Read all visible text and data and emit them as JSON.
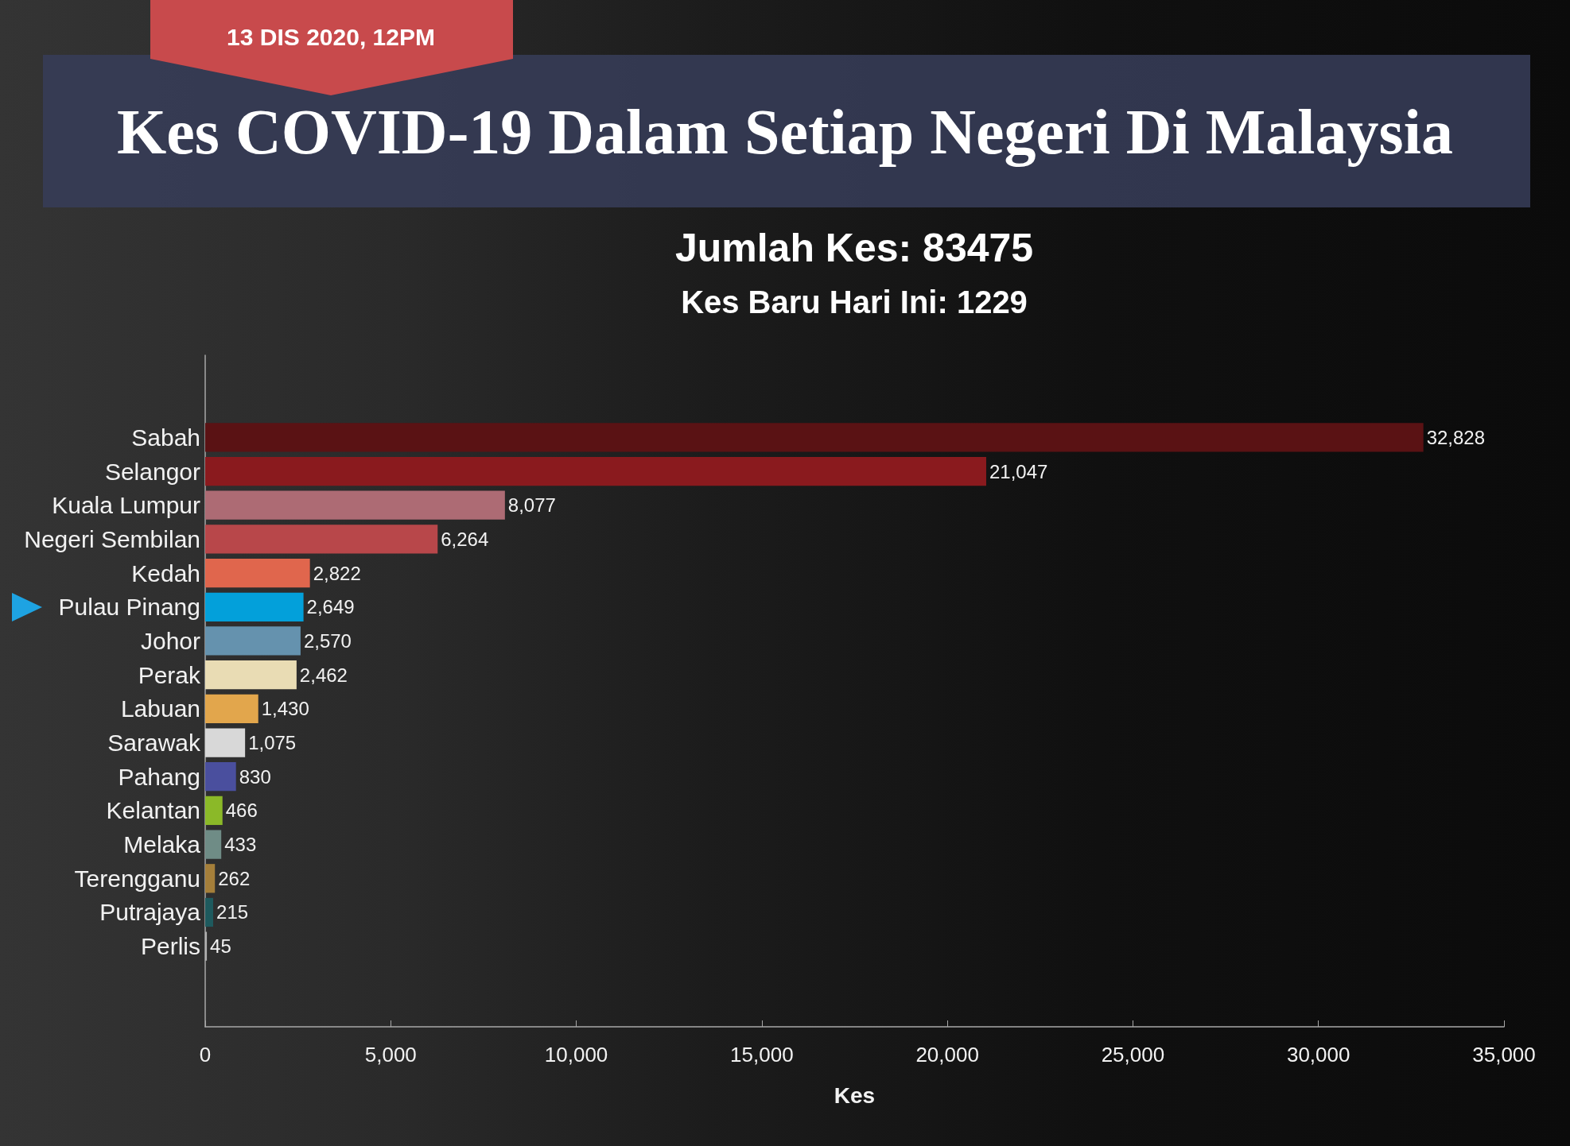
{
  "chart_data": {
    "type": "bar",
    "orientation": "horizontal",
    "title": "Kes COVID-19 Dalam Setiap Negeri Di Malaysia",
    "subtitle": "Jumlah Kes: 83475",
    "annotations": [
      "13 DIS 2020, 12PM",
      "Kes Baru Hari Ini: 1229"
    ],
    "xlabel": "Kes",
    "categories": [
      "Sabah",
      "Selangor",
      "Kuala Lumpur",
      "Negeri Sembilan",
      "Kedah",
      "Pulau Pinang",
      "Johor",
      "Perak",
      "Labuan",
      "Sarawak",
      "Pahang",
      "Kelantan",
      "Melaka",
      "Terengganu",
      "Putrajaya",
      "Perlis"
    ],
    "values": [
      32828,
      21047,
      8077,
      6264,
      2822,
      2649,
      2570,
      2462,
      1430,
      1075,
      830,
      466,
      433,
      262,
      215,
      45
    ],
    "value_labels": [
      "32,828",
      "21,047",
      "8,077",
      "6,264",
      "2,822",
      "2,649",
      "2,570",
      "2,462",
      "1,430",
      "1,075",
      "830",
      "466",
      "433",
      "262",
      "215",
      "45"
    ],
    "colors": [
      "#5a1214",
      "#8a1a1e",
      "#ad6b74",
      "#b8474a",
      "#e0664d",
      "#03a0da",
      "#6592ae",
      "#e9dcb4",
      "#e2a64c",
      "#d8d8d8",
      "#4a4f9e",
      "#8bb928",
      "#6f8c86",
      "#a57f3a",
      "#1e5a5e",
      "#b0b0b0"
    ],
    "xlim": [
      0,
      35000
    ],
    "xticks": [
      0,
      {
        "value": 5000,
        "label": "5,000"
      },
      {
        "value": 10000,
        "label": "10,000"
      },
      {
        "value": 15000,
        "label": "15,000"
      },
      {
        "value": 20000,
        "label": "20,000"
      },
      {
        "value": 25000,
        "label": "25,000"
      },
      {
        "value": 30000,
        "label": "30,000"
      },
      {
        "value": 35000,
        "label": "35,000"
      }
    ]
  }
}
